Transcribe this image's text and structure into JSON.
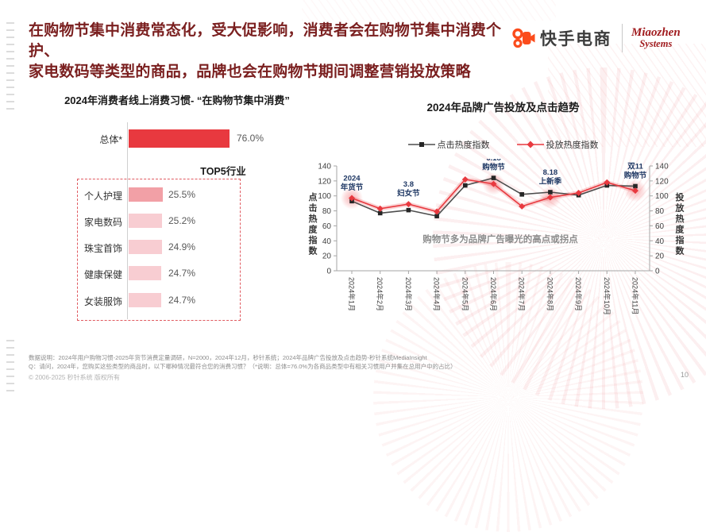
{
  "header": {
    "title_line1": "在购物节集中消费常态化，受大促影响，消费者会在购物节集中消费个护、",
    "title_line2": "家电数码等类型的商品，品牌也会在购物节期间调整营销投放策略",
    "brand": {
      "kuaishou_label": "快手电商",
      "miaozhen_line1": "Miaozhen",
      "miaozhen_line2": "Systems"
    }
  },
  "colors": {
    "title_maroon": "#7a1f1f",
    "accent_red": "#e8393f",
    "bar_pink_dark": "#f2a0a6",
    "bar_pink": "#f8cdd2",
    "navy": "#1f3864",
    "kuaishou_orange": "#fb4c1c",
    "miaozhen_red": "#a01b1e",
    "note_gray": "#8c8c8c",
    "black_series": "#4d4d4d"
  },
  "chart_data": [
    {
      "type": "bar",
      "orientation": "horizontal",
      "title": "2024年消费者线上消费习惯- “在购物节集中消费”",
      "total": {
        "category": "总体*",
        "value": 76.0,
        "label": "76.0%"
      },
      "group_header": "TOP5行业",
      "categories": [
        "个人护理",
        "家电数码",
        "珠宝首饰",
        "健康保健",
        "女装服饰"
      ],
      "values": [
        25.5,
        25.2,
        24.9,
        24.7,
        24.7
      ],
      "value_labels": [
        "25.5%",
        "25.2%",
        "24.9%",
        "24.7%",
        "24.7%"
      ],
      "xlim": [
        0,
        100
      ],
      "grid": false
    },
    {
      "type": "line",
      "title": "2024年品牌广告投放及点击趋势",
      "categories": [
        "2024年1月",
        "2024年2月",
        "2024年3月",
        "2024年4月",
        "2024年5月",
        "2024年6月",
        "2024年7月",
        "2024年8月",
        "2024年9月",
        "2024年10月",
        "2024年11月"
      ],
      "series": [
        {
          "name": "点击热度指数",
          "marker": "square",
          "color": "#4d4d4d",
          "marker_color": "#262626",
          "values": [
            93,
            77,
            81,
            73,
            114,
            124,
            102,
            105,
            101,
            114,
            113
          ]
        },
        {
          "name": "投放热度指数",
          "marker": "diamond",
          "color": "#e8393f",
          "marker_color": "#e8393f",
          "values": [
            97,
            83,
            89,
            79,
            122,
            116,
            86,
            98,
            104,
            118,
            107
          ]
        }
      ],
      "ylim": [
        0,
        140
      ],
      "ytick_step": 20,
      "ylabel_left": "点击热度指数",
      "ylabel_right": "投放热度指数",
      "legend_position": "top",
      "grid": false,
      "annotations": [
        {
          "lines": [
            "2024",
            "年货节"
          ],
          "month_index": 0
        },
        {
          "lines": [
            "3.8",
            "妇女节"
          ],
          "month_index": 2
        },
        {
          "lines": [
            "6.18",
            "购物节"
          ],
          "month_index": 5
        },
        {
          "lines": [
            "8.18",
            "上新季"
          ],
          "month_index": 7
        },
        {
          "lines": [
            "双11",
            "购物节"
          ],
          "month_index": 10
        }
      ],
      "highlight_months": [
        0,
        5,
        7,
        10
      ],
      "center_note": "购物节多为品牌广告曝光的高点或拐点"
    }
  ],
  "footer": {
    "note_line1": "数据说明：2024年用户购物习惯-2025年货节消费定量调研，N=2000，2024年12月，秒针系统；2024年品牌广告投放及点击趋势-秒针系统MediaInsight",
    "note_line2": "Q：请问，2024年，您购买这些类型的商品时，以下哪种情况最符合您的消费习惯？（*说明：总体=76.0%为各商品类型中有相关习惯用户并集在总用户中的占比）",
    "copyright": "© 2006-2025 秒针系统 版权所有",
    "page_number": "10"
  }
}
